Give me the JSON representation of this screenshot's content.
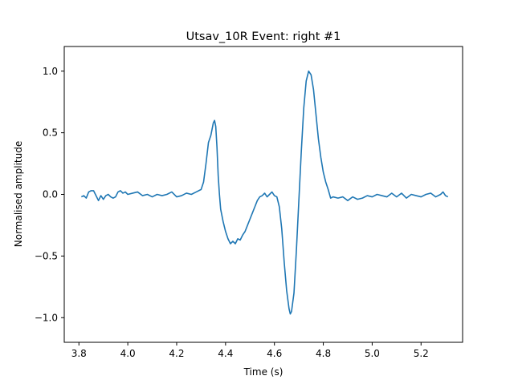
{
  "chart_data": {
    "type": "line",
    "title": "Utsav_10R Event: right #1",
    "xlabel": "Time (s)",
    "ylabel": "Normalised amplitude",
    "xlim": [
      3.74,
      5.37
    ],
    "ylim": [
      -1.2,
      1.2
    ],
    "x_ticks": [
      3.8,
      4.0,
      4.2,
      4.4,
      4.6,
      4.8,
      5.0,
      5.2
    ],
    "x_tick_labels": [
      "3.8",
      "4.0",
      "4.2",
      "4.4",
      "4.6",
      "4.8",
      "5.0",
      "5.2"
    ],
    "y_ticks": [
      -1.0,
      -0.5,
      0.0,
      0.5,
      1.0
    ],
    "y_tick_labels": [
      "−1.0",
      "−0.5",
      "0.0",
      "0.5",
      "1.0"
    ],
    "grid": false,
    "line_color": "#1f77b4",
    "series": [
      {
        "points": [
          [
            3.81,
            -0.02
          ],
          [
            3.82,
            -0.01
          ],
          [
            3.83,
            -0.03
          ],
          [
            3.84,
            0.02
          ],
          [
            3.85,
            0.03
          ],
          [
            3.86,
            0.03
          ],
          [
            3.87,
            -0.01
          ],
          [
            3.88,
            -0.05
          ],
          [
            3.89,
            -0.01
          ],
          [
            3.9,
            -0.04
          ],
          [
            3.91,
            -0.01
          ],
          [
            3.92,
            0.0
          ],
          [
            3.93,
            -0.02
          ],
          [
            3.94,
            -0.03
          ],
          [
            3.95,
            -0.02
          ],
          [
            3.96,
            0.02
          ],
          [
            3.97,
            0.03
          ],
          [
            3.98,
            0.01
          ],
          [
            3.99,
            0.02
          ],
          [
            4.0,
            0.0
          ],
          [
            4.02,
            0.01
          ],
          [
            4.04,
            0.02
          ],
          [
            4.06,
            -0.01
          ],
          [
            4.08,
            0.0
          ],
          [
            4.1,
            -0.02
          ],
          [
            4.12,
            0.0
          ],
          [
            4.14,
            -0.01
          ],
          [
            4.16,
            0.0
          ],
          [
            4.18,
            0.02
          ],
          [
            4.2,
            -0.02
          ],
          [
            4.22,
            -0.01
          ],
          [
            4.24,
            0.01
          ],
          [
            4.26,
            0.0
          ],
          [
            4.28,
            0.02
          ],
          [
            4.3,
            0.04
          ],
          [
            4.31,
            0.1
          ],
          [
            4.32,
            0.25
          ],
          [
            4.33,
            0.42
          ],
          [
            4.34,
            0.48
          ],
          [
            4.35,
            0.58
          ],
          [
            4.355,
            0.6
          ],
          [
            4.36,
            0.55
          ],
          [
            4.365,
            0.38
          ],
          [
            4.37,
            0.15
          ],
          [
            4.375,
            0.0
          ],
          [
            4.38,
            -0.12
          ],
          [
            4.39,
            -0.22
          ],
          [
            4.4,
            -0.3
          ],
          [
            4.41,
            -0.36
          ],
          [
            4.42,
            -0.4
          ],
          [
            4.43,
            -0.38
          ],
          [
            4.44,
            -0.4
          ],
          [
            4.45,
            -0.36
          ],
          [
            4.46,
            -0.37
          ],
          [
            4.47,
            -0.33
          ],
          [
            4.48,
            -0.3
          ],
          [
            4.49,
            -0.25
          ],
          [
            4.5,
            -0.2
          ],
          [
            4.51,
            -0.15
          ],
          [
            4.52,
            -0.1
          ],
          [
            4.53,
            -0.05
          ],
          [
            4.54,
            -0.02
          ],
          [
            4.55,
            -0.01
          ],
          [
            4.56,
            0.01
          ],
          [
            4.57,
            -0.02
          ],
          [
            4.58,
            0.0
          ],
          [
            4.59,
            0.02
          ],
          [
            4.6,
            -0.01
          ],
          [
            4.61,
            -0.02
          ],
          [
            4.62,
            -0.1
          ],
          [
            4.63,
            -0.28
          ],
          [
            4.64,
            -0.55
          ],
          [
            4.65,
            -0.78
          ],
          [
            4.66,
            -0.93
          ],
          [
            4.665,
            -0.97
          ],
          [
            4.67,
            -0.95
          ],
          [
            4.68,
            -0.8
          ],
          [
            4.69,
            -0.45
          ],
          [
            4.7,
            -0.05
          ],
          [
            4.71,
            0.35
          ],
          [
            4.72,
            0.7
          ],
          [
            4.73,
            0.92
          ],
          [
            4.74,
            1.0
          ],
          [
            4.75,
            0.97
          ],
          [
            4.76,
            0.85
          ],
          [
            4.77,
            0.65
          ],
          [
            4.78,
            0.45
          ],
          [
            4.79,
            0.3
          ],
          [
            4.8,
            0.18
          ],
          [
            4.81,
            0.1
          ],
          [
            4.82,
            0.04
          ],
          [
            4.83,
            -0.03
          ],
          [
            4.84,
            -0.02
          ],
          [
            4.86,
            -0.03
          ],
          [
            4.88,
            -0.02
          ],
          [
            4.9,
            -0.05
          ],
          [
            4.92,
            -0.02
          ],
          [
            4.94,
            -0.04
          ],
          [
            4.96,
            -0.03
          ],
          [
            4.98,
            -0.01
          ],
          [
            5.0,
            -0.02
          ],
          [
            5.02,
            0.0
          ],
          [
            5.04,
            -0.01
          ],
          [
            5.06,
            -0.02
          ],
          [
            5.08,
            0.01
          ],
          [
            5.1,
            -0.02
          ],
          [
            5.12,
            0.01
          ],
          [
            5.14,
            -0.03
          ],
          [
            5.16,
            0.0
          ],
          [
            5.18,
            -0.01
          ],
          [
            5.2,
            -0.02
          ],
          [
            5.22,
            0.0
          ],
          [
            5.24,
            0.01
          ],
          [
            5.26,
            -0.02
          ],
          [
            5.28,
            0.0
          ],
          [
            5.29,
            0.02
          ],
          [
            5.3,
            -0.01
          ],
          [
            5.31,
            -0.02
          ]
        ]
      }
    ]
  }
}
